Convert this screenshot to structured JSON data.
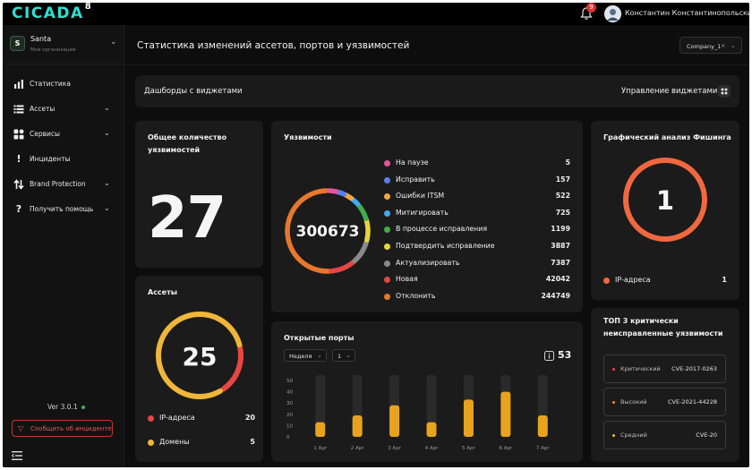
{
  "topbar": {
    "logo": "CICADA",
    "logo_sup": "8",
    "notifications_count": "9",
    "user_name": "Константин Константинопольский"
  },
  "sidebar": {
    "org_initial": "S",
    "org_name": "Santa",
    "org_subtitle": "Моя организация",
    "items": [
      {
        "label": "Статистика",
        "icon": "bar-chart-icon",
        "has_chevron": false
      },
      {
        "label": "Ассеты",
        "icon": "list-icon",
        "has_chevron": true
      },
      {
        "label": "Сервисы",
        "icon": "grid-icon",
        "has_chevron": true
      },
      {
        "label": "Инциденты",
        "icon": "exclamation-icon",
        "has_chevron": false
      },
      {
        "label": "Brand Protection",
        "icon": "arrows-icon",
        "has_chevron": true
      },
      {
        "label": "Получить помощь",
        "icon": "question-icon",
        "has_chevron": true
      }
    ],
    "version": "Ver 3.0.1",
    "report_button": "Сообщить об инциденте"
  },
  "header": {
    "title": "Статистика изменений ассетов, портов и уязвимостей",
    "company_select": "Company_1"
  },
  "dashboard_bar": {
    "title": "Дашборды с виджетами",
    "manage_label": "Управление виджетами"
  },
  "total_vulns": {
    "title": "Общее количество уязвимостей",
    "value": "27"
  },
  "vulns": {
    "title": "Уязвимости",
    "total": "300673",
    "items": [
      {
        "label": "На паузе",
        "value": "5",
        "color": "#e2559c"
      },
      {
        "label": "Исправить",
        "value": "157",
        "color": "#5b7ef0"
      },
      {
        "label": "Ошибки ITSM",
        "value": "522",
        "color": "#f0a640"
      },
      {
        "label": "Митигировать",
        "value": "725",
        "color": "#3fa9f5"
      },
      {
        "label": "В процессе исправления",
        "value": "1199",
        "color": "#3fae49"
      },
      {
        "label": "Подтвердить исправление",
        "value": "3887",
        "color": "#e8d43a"
      },
      {
        "label": "Актуализировать",
        "value": "7387",
        "color": "#8a8a8a"
      },
      {
        "label": "Новая",
        "value": "42042",
        "color": "#e84545"
      },
      {
        "label": "Отклонить",
        "value": "244749",
        "color": "#e8772e"
      }
    ]
  },
  "phishing": {
    "title": "Графический анализ Фишинга",
    "value": "1",
    "legend_label": "IP-адреса",
    "legend_value": "1",
    "color": "#f0683f"
  },
  "assets": {
    "title": "Ассеты",
    "total": "25",
    "items": [
      {
        "label": "IP-адреса",
        "value": "20",
        "color": "#e84545"
      },
      {
        "label": "Домены",
        "value": "5",
        "color": "#f0b63a"
      }
    ]
  },
  "ports": {
    "title": "Открытые порты",
    "period_select": "Неделя",
    "week_select": "1",
    "total": "53",
    "colors": {
      "bar": "#e8a31e",
      "track": "#2a2a2a"
    }
  },
  "chart_data": {
    "type": "bar",
    "categories": [
      "1 Apr",
      "2 Apr",
      "3 Apr",
      "4 Apr",
      "5 Apr",
      "6 Apr",
      "7 Apr"
    ],
    "values": [
      13,
      19,
      28,
      13,
      33,
      40,
      19
    ],
    "ylim": [
      0,
      50
    ],
    "yticks": [
      "50",
      "40",
      "30",
      "20",
      "10",
      "0"
    ]
  },
  "top3": {
    "title": "ТОП 3 критически неисправленные уязвимости",
    "items": [
      {
        "severity": "Критический",
        "cve": "CVE-2017-0263",
        "color": "#e84545"
      },
      {
        "severity": "Высокий",
        "cve": "CVE-2021-44228",
        "color": "#f08a3a"
      },
      {
        "severity": "Средний",
        "cve": "CVE-20",
        "color": "#f0c03a"
      }
    ]
  }
}
